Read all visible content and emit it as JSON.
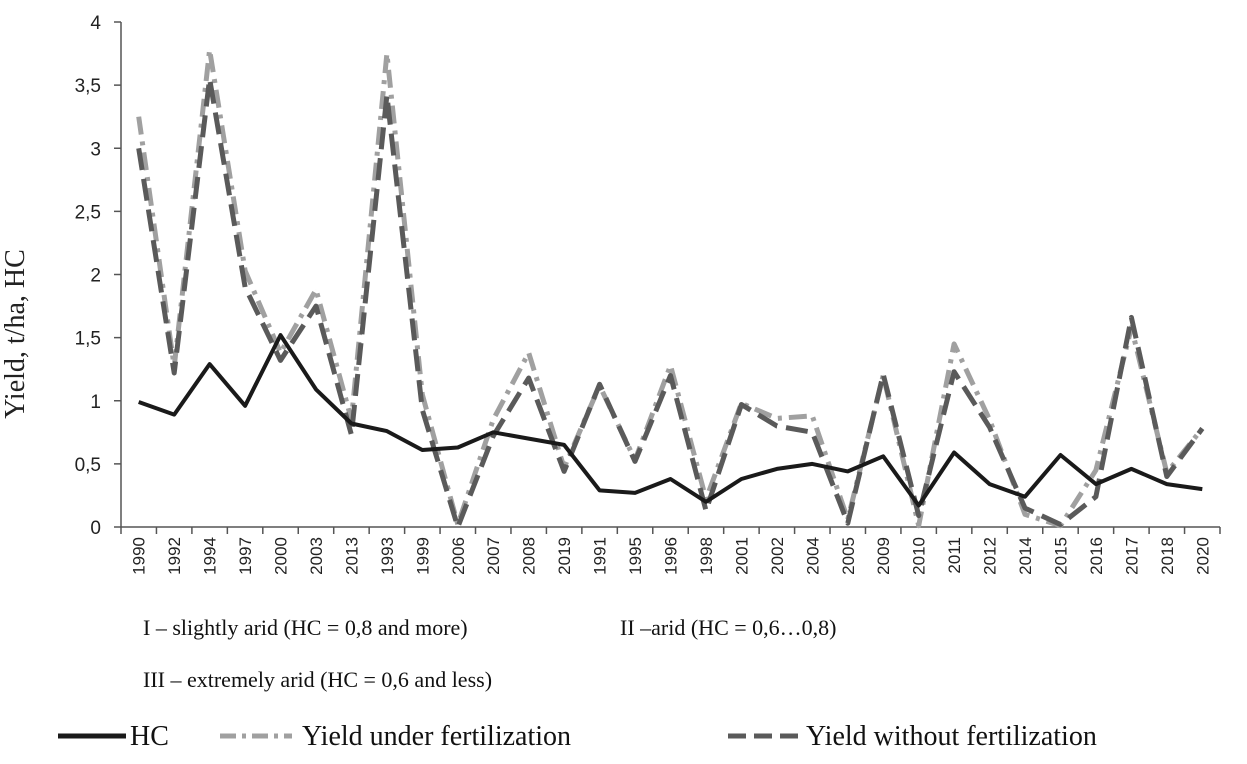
{
  "chart_data": {
    "type": "line",
    "title": "",
    "xlabel": "",
    "ylabel": "Yield, t/ha, HC",
    "ylim": [
      0,
      4
    ],
    "yticks": [
      "0",
      "0,5",
      "1",
      "1,5",
      "2",
      "2,5",
      "3",
      "3,5",
      "4"
    ],
    "categories": [
      "1990",
      "1992",
      "1994",
      "1997",
      "2000",
      "2003",
      "2013",
      "1993",
      "1999",
      "2006",
      "2007",
      "2008",
      "2019",
      "1991",
      "1995",
      "1996",
      "1998",
      "2001",
      "2002",
      "2004",
      "2005",
      "2009",
      "2010",
      "2011",
      "2012",
      "2014",
      "2015",
      "2016",
      "2017",
      "2018",
      "2020"
    ],
    "series": [
      {
        "name": "HC",
        "style": "solid",
        "color": "#1a1a1a",
        "values": [
          0.99,
          0.89,
          1.29,
          0.96,
          1.52,
          1.09,
          0.82,
          0.76,
          0.61,
          0.63,
          0.75,
          0.7,
          0.65,
          0.29,
          0.27,
          0.38,
          0.2,
          0.38,
          0.46,
          0.5,
          0.44,
          0.56,
          0.17,
          0.59,
          0.34,
          0.24,
          0.57,
          0.34,
          0.46,
          0.34,
          0.3
        ]
      },
      {
        "name": "Yield under fertilization",
        "style": "dash-dot",
        "color": "#a0a0a0",
        "values": [
          3.25,
          1.27,
          3.78,
          2.03,
          1.38,
          1.88,
          0.85,
          3.75,
          1.05,
          0.02,
          0.85,
          1.38,
          0.47,
          1.12,
          0.53,
          1.28,
          0.22,
          0.98,
          0.86,
          0.88,
          0.06,
          1.2,
          0.01,
          1.45,
          0.85,
          0.1,
          0.01,
          0.45,
          1.58,
          0.43,
          0.78
        ]
      },
      {
        "name": "Yield without fertilization",
        "style": "dashed",
        "color": "#5a5a5a",
        "values": [
          3.0,
          1.22,
          3.55,
          1.9,
          1.32,
          1.75,
          0.73,
          3.42,
          0.93,
          0.0,
          0.72,
          1.18,
          0.44,
          1.13,
          0.52,
          1.2,
          0.13,
          0.97,
          0.8,
          0.75,
          0.03,
          1.21,
          0.09,
          1.23,
          0.79,
          0.15,
          0.02,
          0.24,
          1.66,
          0.4,
          0.78
        ]
      }
    ],
    "legend_position": "bottom"
  },
  "notes": {
    "zone1": "I – slightly arid (HC = 0,8 and more)",
    "zone2": "II –arid (HC = 0,6…0,8)",
    "zone3": "III – extremely arid (HC = 0,6 and less)"
  },
  "legend": {
    "hc": "HC",
    "fert": "Yield under fertilization",
    "nofert": "Yield without fertilization"
  }
}
